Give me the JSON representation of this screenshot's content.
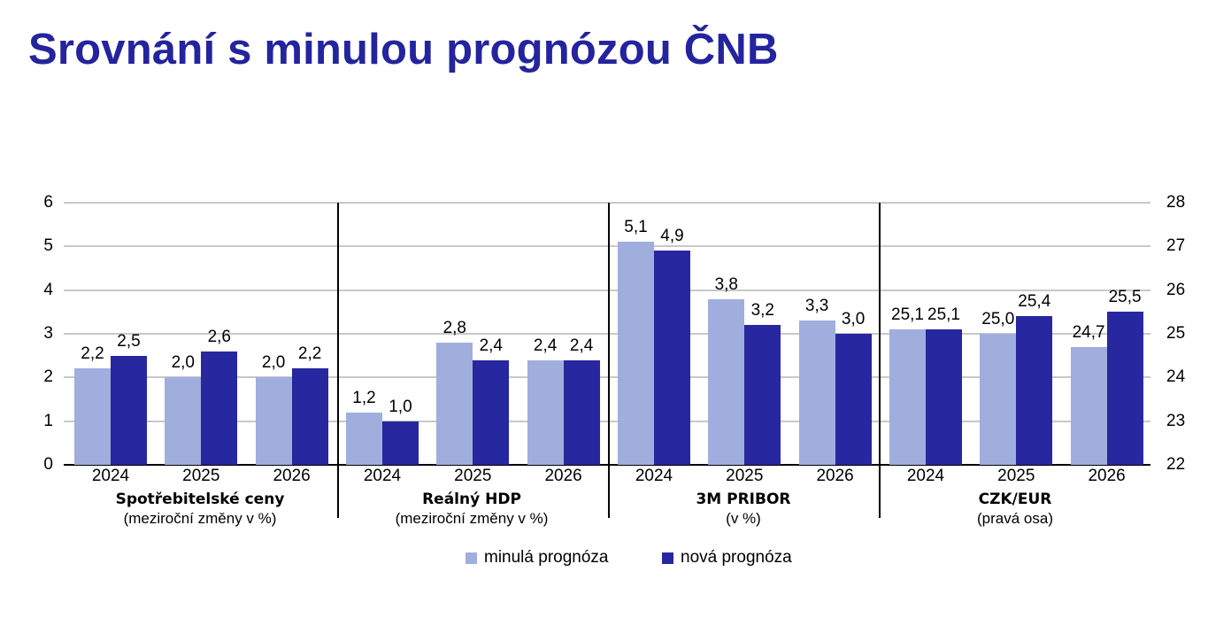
{
  "title": "Srovnání s minulou prognózou ČNB",
  "colors": {
    "previous": "#A0AEDD",
    "new": "#2727A0",
    "title": "#24249E",
    "grid": "#C8C8C8"
  },
  "legend": {
    "previous": "minulá prognóza",
    "new": "nová prognóza"
  },
  "left_axis": {
    "ticks": [
      "0",
      "1",
      "2",
      "3",
      "4",
      "5",
      "6"
    ]
  },
  "right_axis": {
    "ticks": [
      "22",
      "23",
      "24",
      "25",
      "26",
      "27",
      "28"
    ]
  },
  "groups": [
    {
      "title": "Spotřebitelské ceny",
      "subtitle": "(meziroční změny v %)",
      "years": [
        "2024",
        "2025",
        "2026"
      ]
    },
    {
      "title": "Reálný HDP",
      "subtitle": "(meziroční změny v %)",
      "years": [
        "2024",
        "2025",
        "2026"
      ]
    },
    {
      "title": "3M PRIBOR",
      "subtitle": "(v %)",
      "years": [
        "2024",
        "2025",
        "2026"
      ]
    },
    {
      "title": "CZK/EUR",
      "subtitle": "(pravá osa)",
      "years": [
        "2024",
        "2025",
        "2026"
      ]
    }
  ],
  "labels": {
    "g0": {
      "prev": [
        "2,2",
        "2,0",
        "2,0"
      ],
      "new": [
        "2,5",
        "2,6",
        "2,2"
      ]
    },
    "g1": {
      "prev": [
        "1,2",
        "2,8",
        "2,4"
      ],
      "new": [
        "1,0",
        "2,4",
        "2,4"
      ]
    },
    "g2": {
      "prev": [
        "5,1",
        "3,8",
        "3,3"
      ],
      "new": [
        "4,9",
        "3,2",
        "3,0"
      ]
    },
    "g3": {
      "prev": [
        "25,1",
        "25,0",
        "24,7"
      ],
      "new": [
        "25,1",
        "25,4",
        "25,5"
      ]
    }
  },
  "chart_data": {
    "type": "bar",
    "title": "Srovnání s minulou prognózou ČNB",
    "categories": [
      "Spotřebitelské ceny 2024",
      "Spotřebitelské ceny 2025",
      "Spotřebitelské ceny 2026",
      "Reálný HDP 2024",
      "Reálný HDP 2025",
      "Reálný HDP 2026",
      "3M PRIBOR 2024",
      "3M PRIBOR 2025",
      "3M PRIBOR 2026",
      "CZK/EUR 2024",
      "CZK/EUR 2025",
      "CZK/EUR 2026"
    ],
    "series": [
      {
        "name": "minulá prognóza",
        "color": "#A0AEDD",
        "values": [
          2.2,
          2.0,
          2.0,
          1.2,
          2.8,
          2.4,
          5.1,
          3.8,
          3.3,
          25.1,
          25.0,
          24.7
        ]
      },
      {
        "name": "nová prognóza",
        "color": "#2727A0",
        "values": [
          2.5,
          2.6,
          2.2,
          1.0,
          2.4,
          2.4,
          4.9,
          3.2,
          3.0,
          25.1,
          25.4,
          25.5
        ]
      }
    ],
    "groups": [
      {
        "name": "Spotřebitelské ceny",
        "unit": "(meziroční změny v %)",
        "axis": "left"
      },
      {
        "name": "Reálný HDP",
        "unit": "(meziroční změny v %)",
        "axis": "left"
      },
      {
        "name": "3M PRIBOR",
        "unit": "(v %)",
        "axis": "left"
      },
      {
        "name": "CZK/EUR",
        "unit": "(pravá osa)",
        "axis": "right"
      }
    ],
    "xlabel": "",
    "ylabel": "",
    "ylim": [
      0,
      6
    ],
    "y2lim": [
      22,
      28
    ],
    "y_ticks": [
      0,
      1,
      2,
      3,
      4,
      5,
      6
    ],
    "y2_ticks": [
      22,
      23,
      24,
      25,
      26,
      27,
      28
    ],
    "grid": true,
    "legend_position": "bottom"
  }
}
